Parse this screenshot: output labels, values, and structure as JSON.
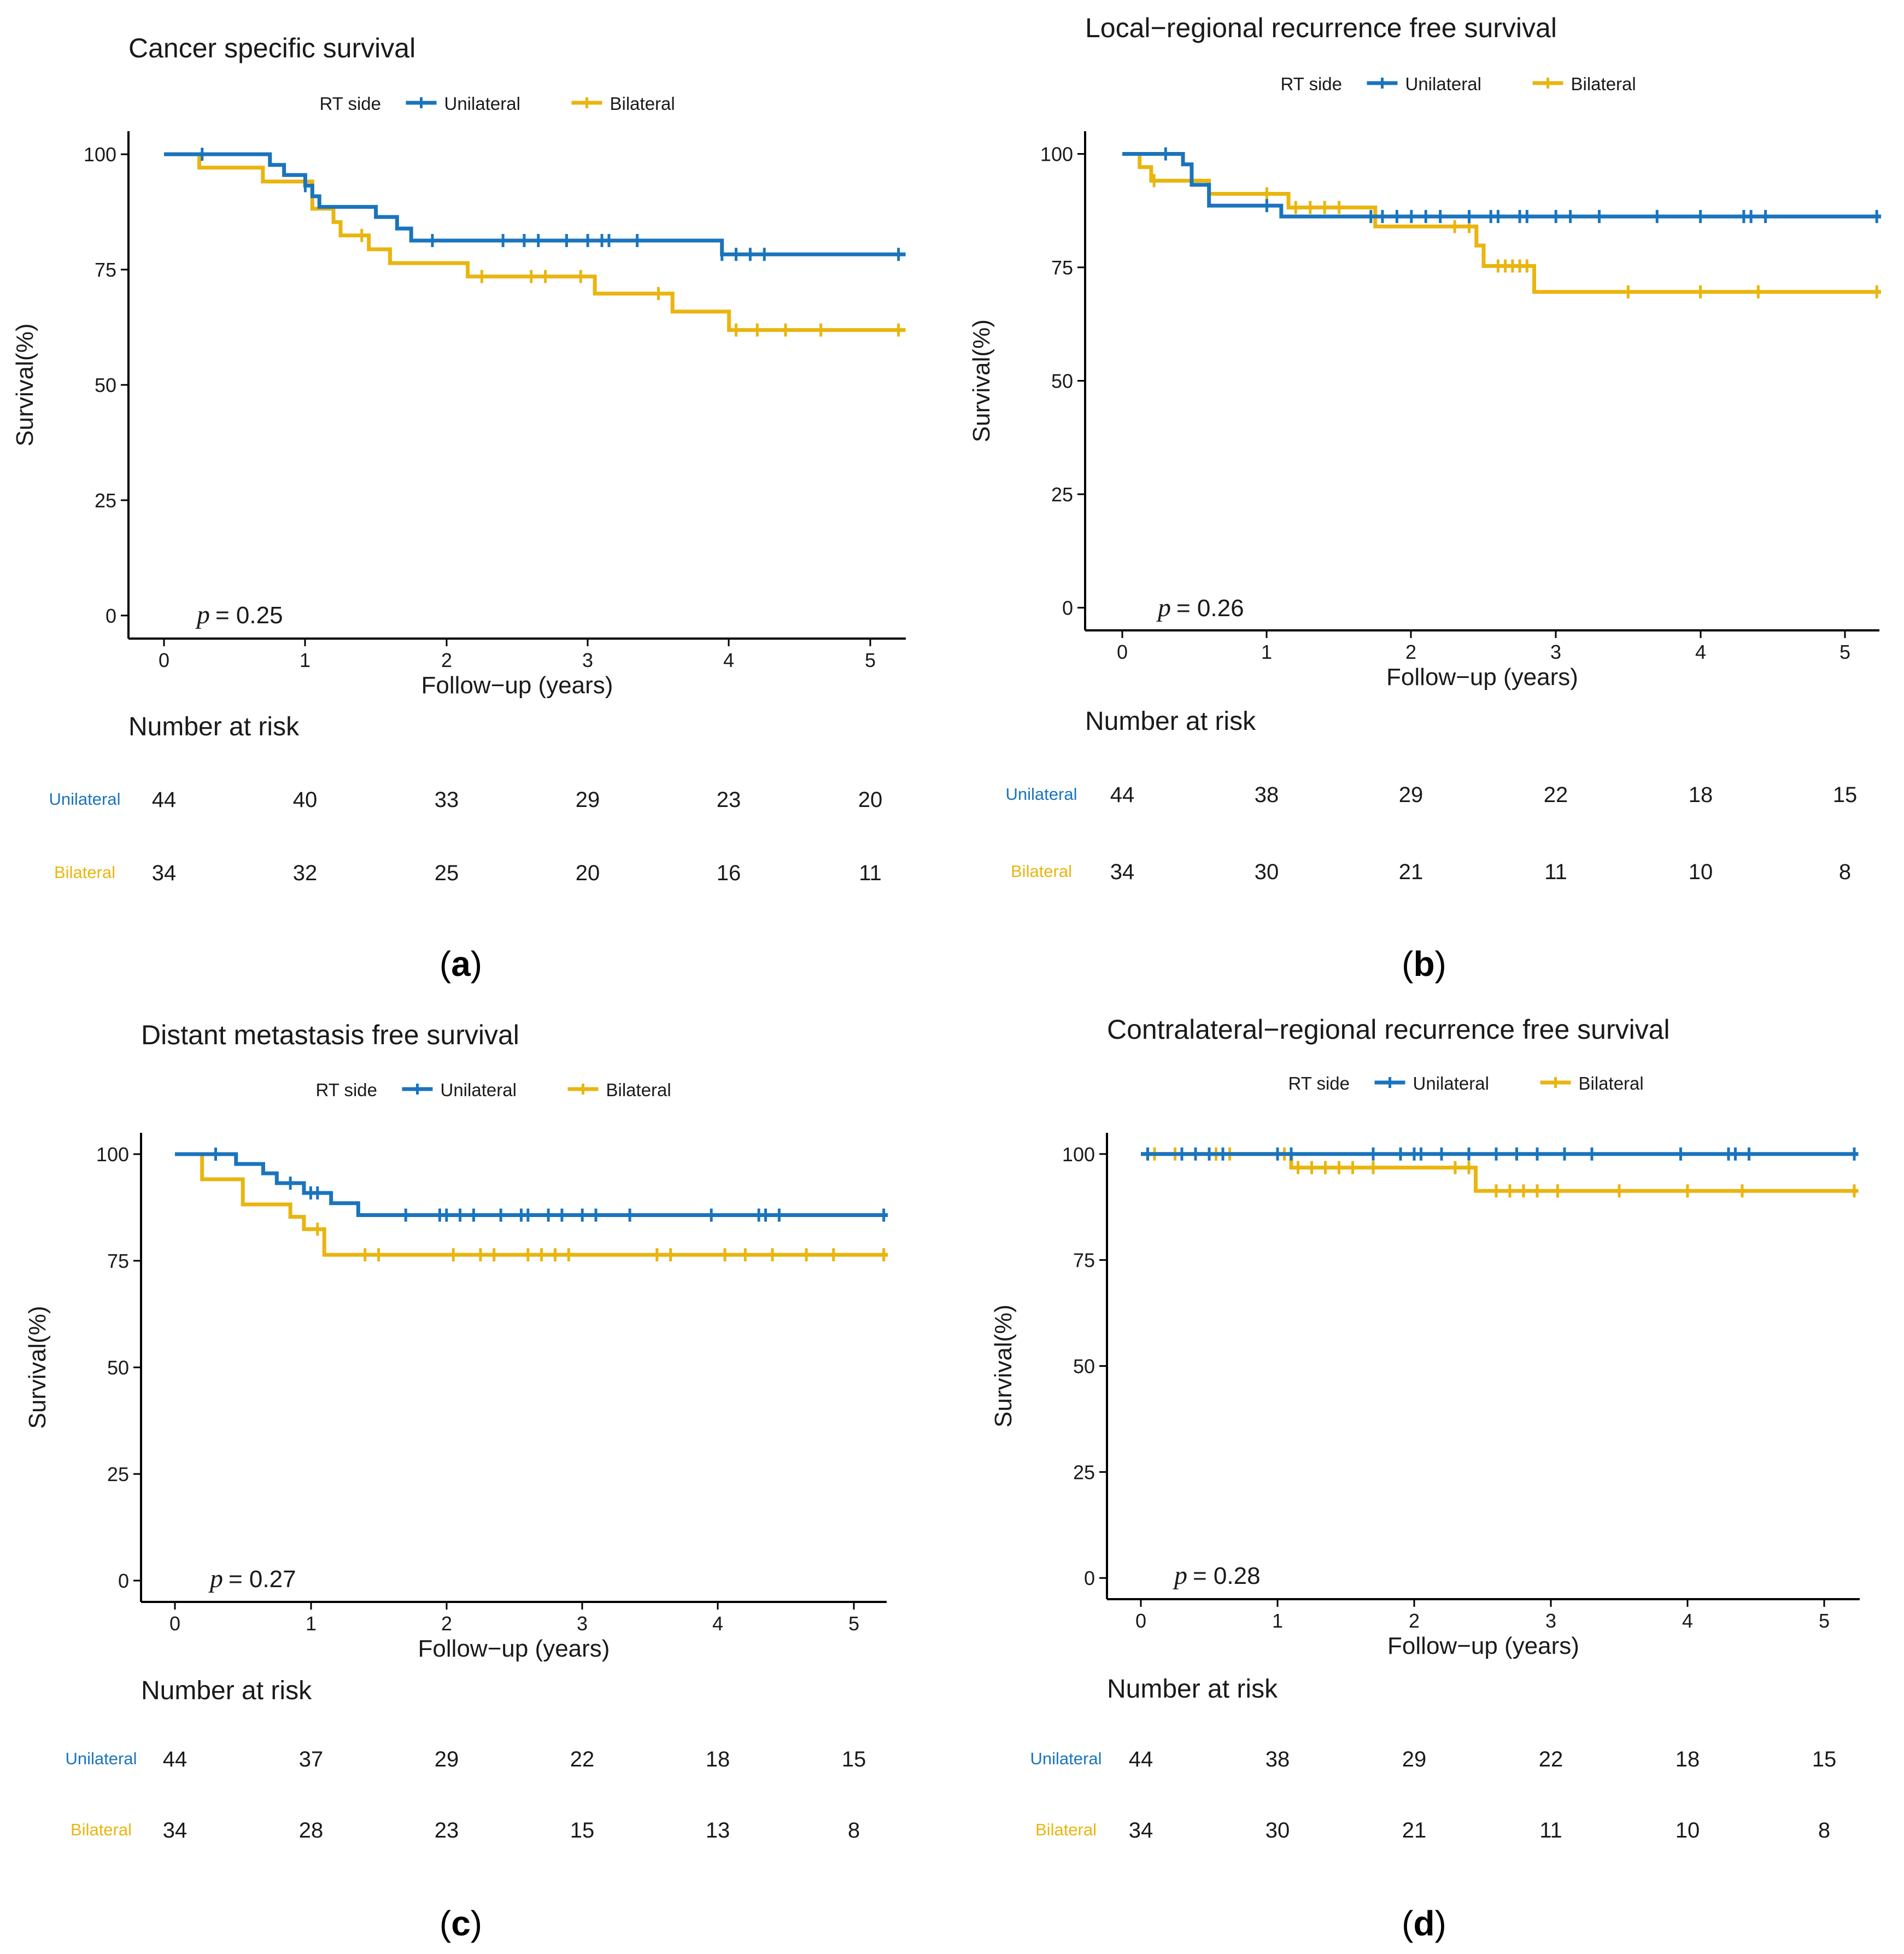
{
  "colors": {
    "unilateral": "#1a74bd",
    "bilateral": "#e9b50f",
    "axis": "#000000",
    "text": "#1a1a1a"
  },
  "legend": {
    "title": "RT side",
    "unilateral": "Unilateral",
    "bilateral": "Bilateral"
  },
  "common": {
    "xlabel": "Follow−up (years)",
    "ylabel": "Survival(%)",
    "x_ticks": [
      "0",
      "1",
      "2",
      "3",
      "4",
      "5"
    ],
    "y_ticks": [
      "0",
      "25",
      "50",
      "75",
      "100"
    ],
    "risk_title": "Number at risk",
    "risk_row_labels": [
      "Unilateral",
      "Bilateral"
    ]
  },
  "chart_data": [
    {
      "type": "line",
      "panel_label": "(a)",
      "title": "Cancer specific survival",
      "p_label": "p",
      "p_value": "= 0.25",
      "xlim": [
        -0.25,
        5.25
      ],
      "ylim": [
        -5,
        105
      ],
      "series": [
        {
          "name": "Unilateral",
          "steps": [
            [
              0,
              100
            ],
            [
              0.75,
              97.7
            ],
            [
              0.85,
              95.5
            ],
            [
              1.0,
              93.2
            ],
            [
              1.05,
              90.9
            ],
            [
              1.1,
              88.6
            ],
            [
              1.5,
              86.4
            ],
            [
              1.65,
              83.9
            ],
            [
              1.75,
              81.3
            ],
            [
              3.95,
              78.3
            ],
            [
              5.25,
              78.3
            ]
          ],
          "censors": [
            [
              0.27,
              100
            ],
            [
              1.0,
              93.2
            ],
            [
              1.9,
              81.3
            ],
            [
              2.4,
              81.3
            ],
            [
              2.55,
              81.3
            ],
            [
              2.65,
              81.3
            ],
            [
              2.85,
              81.3
            ],
            [
              3.0,
              81.3
            ],
            [
              3.1,
              81.3
            ],
            [
              3.15,
              81.3
            ],
            [
              3.35,
              81.3
            ],
            [
              3.95,
              78.3
            ],
            [
              4.05,
              78.3
            ],
            [
              4.15,
              78.3
            ],
            [
              4.25,
              78.3
            ],
            [
              5.2,
              78.3
            ]
          ]
        },
        {
          "name": "Bilateral",
          "steps": [
            [
              0,
              100
            ],
            [
              0.25,
              97.1
            ],
            [
              0.7,
              94.1
            ],
            [
              1.05,
              88.2
            ],
            [
              1.2,
              85.3
            ],
            [
              1.25,
              82.4
            ],
            [
              1.45,
              79.4
            ],
            [
              1.6,
              76.4
            ],
            [
              2.15,
              73.5
            ],
            [
              3.05,
              69.8
            ],
            [
              3.6,
              65.9
            ],
            [
              4.0,
              61.9
            ],
            [
              5.25,
              61.9
            ]
          ],
          "censors": [
            [
              1.4,
              82.4
            ],
            [
              2.25,
              73.5
            ],
            [
              2.6,
              73.5
            ],
            [
              2.7,
              73.5
            ],
            [
              2.95,
              73.5
            ],
            [
              3.5,
              69.8
            ],
            [
              4.05,
              61.9
            ],
            [
              4.2,
              61.9
            ],
            [
              4.4,
              61.9
            ],
            [
              4.65,
              61.9
            ],
            [
              5.2,
              61.9
            ]
          ]
        }
      ],
      "risk_table": {
        "Unilateral": [
          44,
          40,
          33,
          29,
          23,
          20
        ],
        "Bilateral": [
          34,
          32,
          25,
          20,
          16,
          11
        ]
      }
    },
    {
      "type": "line",
      "panel_label": "(b)",
      "title": "Local−regional recurrence free survival",
      "p_label": "p",
      "p_value": "= 0.26",
      "xlim": [
        -0.25,
        5.25
      ],
      "ylim": [
        -5,
        105
      ],
      "series": [
        {
          "name": "Unilateral",
          "steps": [
            [
              0,
              100
            ],
            [
              0.42,
              97.7
            ],
            [
              0.48,
              93.2
            ],
            [
              0.6,
              88.6
            ],
            [
              1.1,
              86.2
            ],
            [
              5.25,
              86.2
            ]
          ],
          "censors": [
            [
              0.3,
              100
            ],
            [
              1.0,
              88.6
            ],
            [
              1.72,
              86.2
            ],
            [
              1.8,
              86.2
            ],
            [
              1.9,
              86.2
            ],
            [
              2.0,
              86.2
            ],
            [
              2.1,
              86.2
            ],
            [
              2.2,
              86.2
            ],
            [
              2.4,
              86.2
            ],
            [
              2.55,
              86.2
            ],
            [
              2.6,
              86.2
            ],
            [
              2.75,
              86.2
            ],
            [
              2.8,
              86.2
            ],
            [
              3.0,
              86.2
            ],
            [
              3.1,
              86.2
            ],
            [
              3.3,
              86.2
            ],
            [
              3.7,
              86.2
            ],
            [
              4.0,
              86.2
            ],
            [
              4.3,
              86.2
            ],
            [
              4.35,
              86.2
            ],
            [
              4.45,
              86.2
            ],
            [
              5.22,
              86.2
            ]
          ]
        },
        {
          "name": "Bilateral",
          "steps": [
            [
              0,
              100
            ],
            [
              0.12,
              97.1
            ],
            [
              0.2,
              94.1
            ],
            [
              0.6,
              91.2
            ],
            [
              1.15,
              88.2
            ],
            [
              1.75,
              84.0
            ],
            [
              2.45,
              79.8
            ],
            [
              2.5,
              75.3
            ],
            [
              2.85,
              69.6
            ],
            [
              5.25,
              69.6
            ]
          ],
          "censors": [
            [
              0.22,
              94.1
            ],
            [
              1.0,
              91.2
            ],
            [
              1.2,
              88.2
            ],
            [
              1.3,
              88.2
            ],
            [
              1.4,
              88.2
            ],
            [
              1.5,
              88.2
            ],
            [
              2.3,
              84.0
            ],
            [
              2.4,
              84.0
            ],
            [
              2.6,
              75.3
            ],
            [
              2.65,
              75.3
            ],
            [
              2.7,
              75.3
            ],
            [
              2.75,
              75.3
            ],
            [
              2.8,
              75.3
            ],
            [
              3.5,
              69.6
            ],
            [
              4.0,
              69.6
            ],
            [
              4.4,
              69.6
            ],
            [
              5.22,
              69.6
            ]
          ]
        }
      ],
      "risk_table": {
        "Unilateral": [
          44,
          38,
          29,
          22,
          18,
          15
        ],
        "Bilateral": [
          34,
          30,
          21,
          11,
          10,
          8
        ]
      }
    },
    {
      "type": "line",
      "panel_label": "(c)",
      "title": "Distant metastasis free survival",
      "p_label": "p",
      "p_value": "= 0.27",
      "xlim": [
        -0.25,
        5.25
      ],
      "ylim": [
        -5,
        105
      ],
      "series": [
        {
          "name": "Unilateral",
          "steps": [
            [
              0,
              100
            ],
            [
              0.45,
              97.7
            ],
            [
              0.65,
              95.5
            ],
            [
              0.75,
              93.2
            ],
            [
              0.95,
              90.9
            ],
            [
              1.15,
              88.5
            ],
            [
              1.35,
              85.7
            ],
            [
              5.25,
              85.7
            ]
          ],
          "censors": [
            [
              0.3,
              100
            ],
            [
              0.85,
              93.2
            ],
            [
              1.0,
              90.9
            ],
            [
              1.05,
              90.9
            ],
            [
              1.7,
              85.7
            ],
            [
              1.95,
              85.7
            ],
            [
              2.0,
              85.7
            ],
            [
              2.1,
              85.7
            ],
            [
              2.2,
              85.7
            ],
            [
              2.4,
              85.7
            ],
            [
              2.55,
              85.7
            ],
            [
              2.6,
              85.7
            ],
            [
              2.75,
              85.7
            ],
            [
              2.85,
              85.7
            ],
            [
              3.0,
              85.7
            ],
            [
              3.1,
              85.7
            ],
            [
              3.35,
              85.7
            ],
            [
              3.95,
              85.7
            ],
            [
              4.3,
              85.7
            ],
            [
              4.35,
              85.7
            ],
            [
              4.45,
              85.7
            ],
            [
              5.22,
              85.7
            ]
          ]
        },
        {
          "name": "Bilateral",
          "steps": [
            [
              0,
              100
            ],
            [
              0.2,
              94.1
            ],
            [
              0.5,
              88.2
            ],
            [
              0.85,
              85.3
            ],
            [
              0.95,
              82.4
            ],
            [
              1.1,
              76.4
            ],
            [
              5.25,
              76.4
            ]
          ],
          "censors": [
            [
              1.05,
              82.4
            ],
            [
              1.4,
              76.4
            ],
            [
              1.5,
              76.4
            ],
            [
              2.05,
              76.4
            ],
            [
              2.25,
              76.4
            ],
            [
              2.35,
              76.4
            ],
            [
              2.6,
              76.4
            ],
            [
              2.7,
              76.4
            ],
            [
              2.8,
              76.4
            ],
            [
              2.9,
              76.4
            ],
            [
              3.55,
              76.4
            ],
            [
              3.65,
              76.4
            ],
            [
              4.05,
              76.4
            ],
            [
              4.2,
              76.4
            ],
            [
              4.4,
              76.4
            ],
            [
              4.65,
              76.4
            ],
            [
              4.85,
              76.4
            ],
            [
              5.22,
              76.4
            ]
          ]
        }
      ],
      "risk_table": {
        "Unilateral": [
          44,
          37,
          29,
          22,
          18,
          15
        ],
        "Bilateral": [
          34,
          28,
          23,
          15,
          13,
          8
        ]
      }
    },
    {
      "type": "line",
      "panel_label": "(d)",
      "title": "Contralateral−regional recurrence free survival",
      "p_label": "p",
      "p_value": "= 0.28",
      "xlim": [
        -0.25,
        5.25
      ],
      "ylim": [
        -5,
        105
      ],
      "series": [
        {
          "name": "Unilateral",
          "steps": [
            [
              0,
              100
            ],
            [
              5.25,
              100
            ]
          ],
          "censors": [
            [
              0.05,
              100
            ],
            [
              0.3,
              100
            ],
            [
              0.4,
              100
            ],
            [
              0.5,
              100
            ],
            [
              0.6,
              100
            ],
            [
              1.0,
              100
            ],
            [
              1.1,
              100
            ],
            [
              1.7,
              100
            ],
            [
              1.9,
              100
            ],
            [
              2.0,
              100
            ],
            [
              2.05,
              100
            ],
            [
              2.2,
              100
            ],
            [
              2.4,
              100
            ],
            [
              2.6,
              100
            ],
            [
              2.75,
              100
            ],
            [
              2.9,
              100
            ],
            [
              3.1,
              100
            ],
            [
              3.3,
              100
            ],
            [
              3.95,
              100
            ],
            [
              4.3,
              100
            ],
            [
              4.35,
              100
            ],
            [
              4.45,
              100
            ],
            [
              5.22,
              100
            ]
          ]
        },
        {
          "name": "Bilateral",
          "steps": [
            [
              0,
              100
            ],
            [
              1.1,
              96.8
            ],
            [
              2.45,
              91.3
            ],
            [
              5.25,
              91.3
            ]
          ],
          "censors": [
            [
              0.1,
              100
            ],
            [
              0.25,
              100
            ],
            [
              0.55,
              100
            ],
            [
              0.65,
              100
            ],
            [
              1.05,
              100
            ],
            [
              1.15,
              96.8
            ],
            [
              1.25,
              96.8
            ],
            [
              1.35,
              96.8
            ],
            [
              1.45,
              96.8
            ],
            [
              1.55,
              96.8
            ],
            [
              1.7,
              96.8
            ],
            [
              2.3,
              96.8
            ],
            [
              2.4,
              96.8
            ],
            [
              2.6,
              91.3
            ],
            [
              2.7,
              91.3
            ],
            [
              2.8,
              91.3
            ],
            [
              2.9,
              91.3
            ],
            [
              3.05,
              91.3
            ],
            [
              3.5,
              91.3
            ],
            [
              4.0,
              91.3
            ],
            [
              4.4,
              91.3
            ],
            [
              5.22,
              91.3
            ]
          ]
        }
      ],
      "risk_table": {
        "Unilateral": [
          44,
          38,
          29,
          22,
          18,
          15
        ],
        "Bilateral": [
          34,
          30,
          21,
          11,
          10,
          8
        ]
      }
    }
  ]
}
